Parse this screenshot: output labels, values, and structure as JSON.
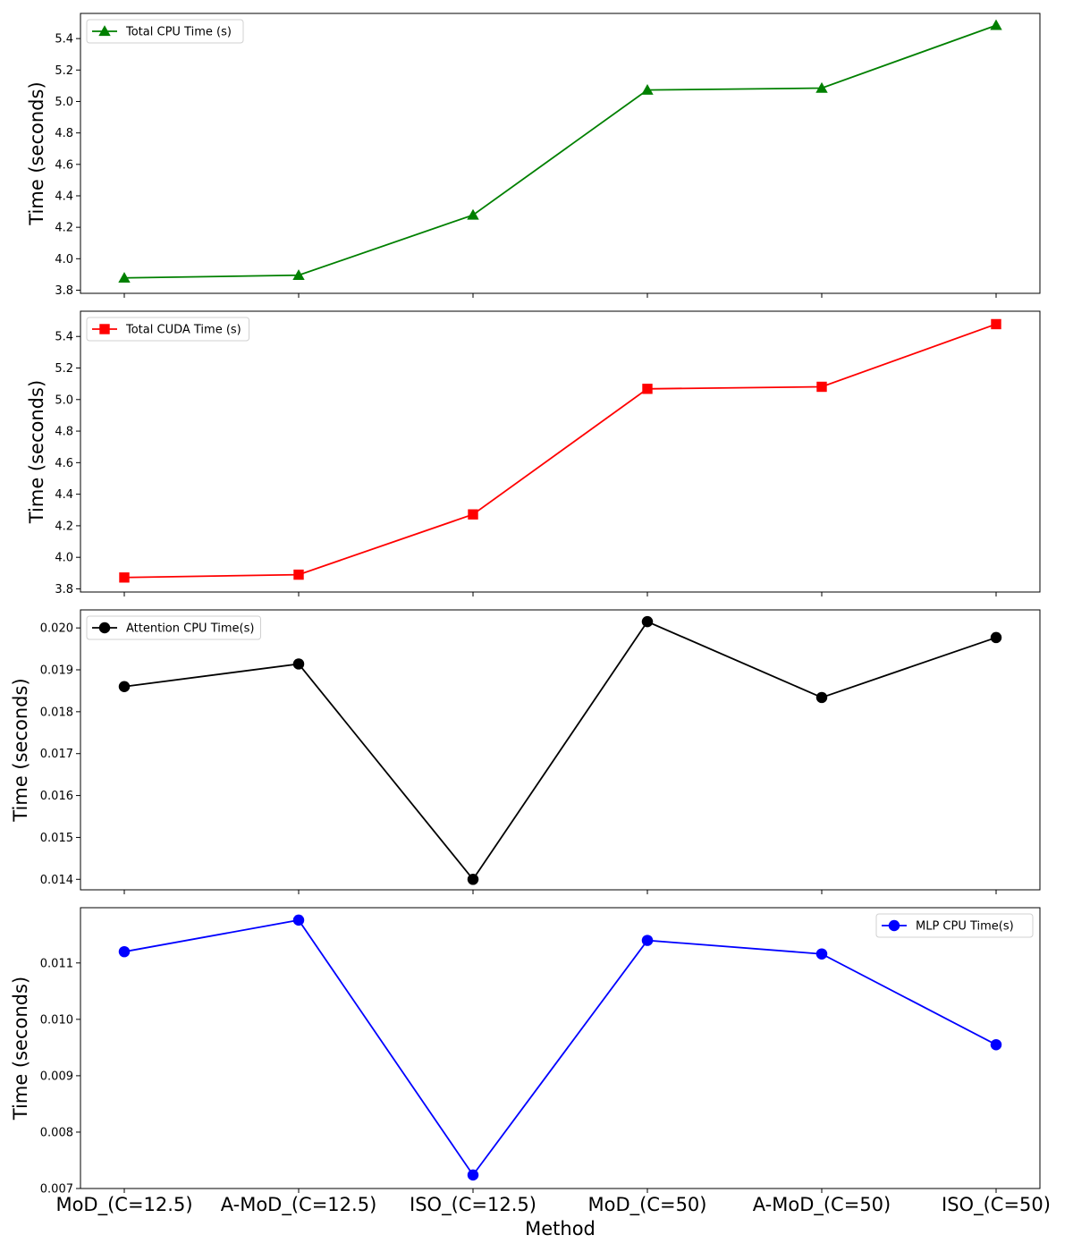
{
  "chart_data": [
    {
      "type": "line",
      "categories": [
        "MoD_(C=12.5)",
        "A-MoD_(C=12.5)",
        "ISO_(C=12.5)",
        "MoD_(C=50)",
        "A-MoD_(C=50)",
        "ISO_(C=50)"
      ],
      "series": [
        {
          "name": "Total CPU Time (s)",
          "values": [
            3.878,
            3.895,
            4.278,
            5.073,
            5.085,
            5.484
          ],
          "color": "#008000",
          "marker": "triangle"
        }
      ],
      "ylabel": "Time (seconds)",
      "ylim": [
        3.78,
        5.56
      ],
      "yticks": [
        3.8,
        4.0,
        4.2,
        4.4,
        4.6,
        4.8,
        5.0,
        5.2,
        5.4
      ],
      "tick_decimals": 1,
      "legend_position": "top-left",
      "show_category_labels": false
    },
    {
      "type": "line",
      "categories": [
        "MoD_(C=12.5)",
        "A-MoD_(C=12.5)",
        "ISO_(C=12.5)",
        "MoD_(C=50)",
        "A-MoD_(C=50)",
        "ISO_(C=50)"
      ],
      "series": [
        {
          "name": "Total CUDA Time (s)",
          "values": [
            3.872,
            3.89,
            4.272,
            5.068,
            5.081,
            5.478
          ],
          "color": "#ff0000",
          "marker": "square"
        }
      ],
      "ylabel": "Time (seconds)",
      "ylim": [
        3.78,
        5.56
      ],
      "yticks": [
        3.8,
        4.0,
        4.2,
        4.4,
        4.6,
        4.8,
        5.0,
        5.2,
        5.4
      ],
      "tick_decimals": 1,
      "legend_position": "top-left",
      "show_category_labels": false
    },
    {
      "type": "line",
      "categories": [
        "MoD_(C=12.5)",
        "A-MoD_(C=12.5)",
        "ISO_(C=12.5)",
        "MoD_(C=50)",
        "A-MoD_(C=50)",
        "ISO_(C=50)"
      ],
      "series": [
        {
          "name": "Attention CPU Time(s)",
          "values": [
            0.0186,
            0.01914,
            0.014,
            0.02015,
            0.01834,
            0.01977
          ],
          "color": "#000000",
          "marker": "circle"
        }
      ],
      "ylabel": "Time (seconds)",
      "ylim": [
        0.01375,
        0.02043
      ],
      "yticks": [
        0.014,
        0.015,
        0.016,
        0.017,
        0.018,
        0.019,
        0.02
      ],
      "tick_decimals": 3,
      "legend_position": "top-left",
      "show_category_labels": false
    },
    {
      "type": "line",
      "categories": [
        "MoD_(C=12.5)",
        "A-MoD_(C=12.5)",
        "ISO_(C=12.5)",
        "MoD_(C=50)",
        "A-MoD_(C=50)",
        "ISO_(C=50)"
      ],
      "series": [
        {
          "name": "MLP CPU Time(s)",
          "values": [
            0.0112,
            0.01176,
            0.00724,
            0.0114,
            0.01116,
            0.00955
          ],
          "color": "#0000ff",
          "marker": "circle"
        }
      ],
      "xlabel": "Method",
      "ylabel": "Time (seconds)",
      "ylim": [
        0.007,
        0.01198
      ],
      "yticks": [
        0.007,
        0.008,
        0.009,
        0.01,
        0.011
      ],
      "tick_decimals": 3,
      "legend_position": "top-right",
      "show_category_labels": true
    }
  ]
}
